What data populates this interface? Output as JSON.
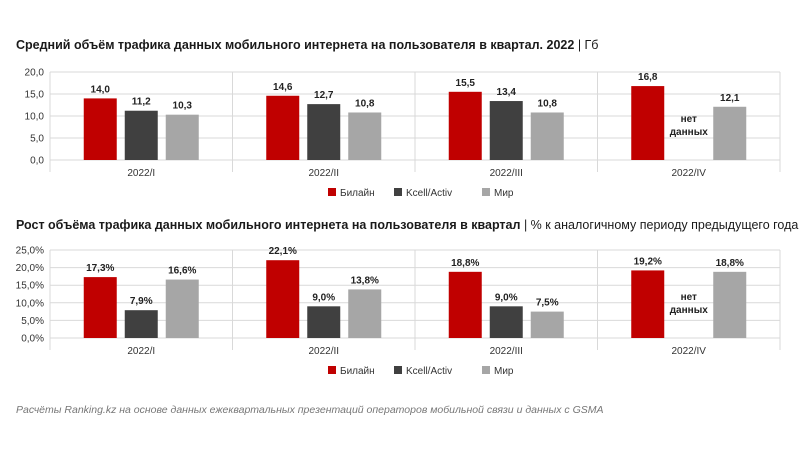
{
  "colors": {
    "bilain": "#c00000",
    "kcell": "#404040",
    "mir": "#a6a6a6",
    "grid": "#d9d9d9",
    "divider": "#d9d9d9"
  },
  "chart_data": [
    {
      "type": "bar",
      "title": "Средний объём трафика данных мобильного интернета на пользователя в квартал. 2022",
      "unit": "| Гб",
      "categories": [
        "2022/I",
        "2022/II",
        "2022/III",
        "2022/IV"
      ],
      "series": [
        {
          "name": "Билайн",
          "values": [
            14.0,
            14.6,
            15.5,
            16.8
          ],
          "labels": [
            "14,0",
            "14,6",
            "15,5",
            "16,8"
          ]
        },
        {
          "name": "Kcell/Activ",
          "values": [
            11.2,
            12.7,
            13.4,
            null
          ],
          "labels": [
            "11,2",
            "12,7",
            "13,4",
            null
          ]
        },
        {
          "name": "Мир",
          "values": [
            10.3,
            10.8,
            10.8,
            12.1
          ],
          "labels": [
            "10,3",
            "10,8",
            "10,8",
            "12,1"
          ]
        }
      ],
      "ylim": [
        0,
        20
      ],
      "yticks": [
        "0,0",
        "5,0",
        "10,0",
        "15,0",
        "20,0"
      ],
      "no_data_label": "нет данных",
      "grid": true,
      "legend": "bottom-center"
    },
    {
      "type": "bar",
      "title": "Рост объёма трафика данных мобильного интернета на пользователя в квартал",
      "unit": "| % к аналогичному периоду предыдущего года",
      "categories": [
        "2022/I",
        "2022/II",
        "2022/III",
        "2022/IV"
      ],
      "series": [
        {
          "name": "Билайн",
          "values": [
            17.3,
            22.1,
            18.8,
            19.2
          ],
          "labels": [
            "17,3%",
            "22,1%",
            "18,8%",
            "19,2%"
          ]
        },
        {
          "name": "Kcell/Activ",
          "values": [
            7.9,
            9.0,
            9.0,
            null
          ],
          "labels": [
            "7,9%",
            "9,0%",
            "9,0%",
            null
          ]
        },
        {
          "name": "Мир",
          "values": [
            16.6,
            13.8,
            7.5,
            18.8
          ],
          "labels": [
            "16,6%",
            "13,8%",
            "7,5%",
            "18,8%"
          ]
        }
      ],
      "ylim": [
        0,
        25
      ],
      "yticks": [
        "0,0%",
        "5,0%",
        "10,0%",
        "15,0%",
        "20,0%",
        "25,0%"
      ],
      "no_data_label": "нет данных",
      "grid": true,
      "legend": "bottom-center"
    }
  ],
  "source": "Расчёты Ranking.kz на основе данных ежеквартальных презентаций операторов мобильной связи и данных с GSMA"
}
